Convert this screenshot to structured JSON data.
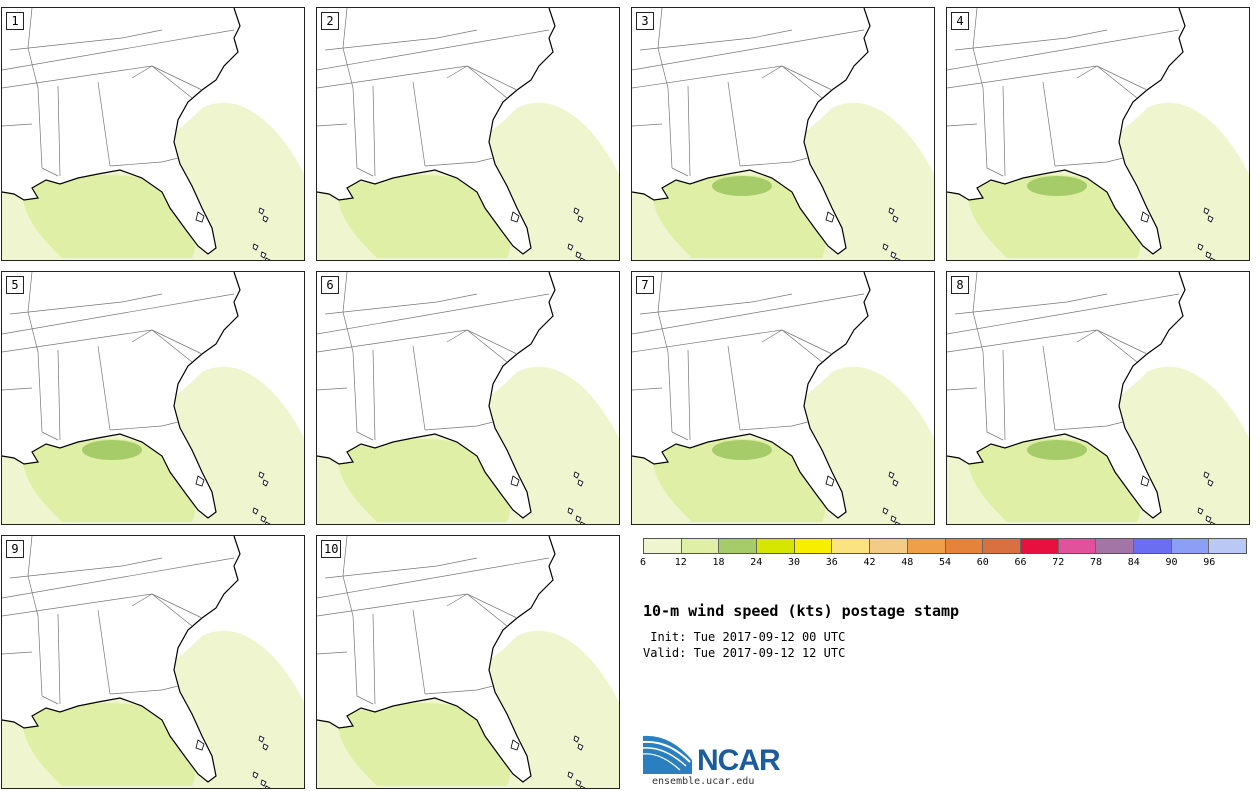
{
  "stamps": [
    {
      "label": "1",
      "intensity": 1
    },
    {
      "label": "2",
      "intensity": 1
    },
    {
      "label": "3",
      "intensity": 2
    },
    {
      "label": "4",
      "intensity": 2
    },
    {
      "label": "5",
      "intensity": 2
    },
    {
      "label": "6",
      "intensity": 1
    },
    {
      "label": "7",
      "intensity": 3
    },
    {
      "label": "8",
      "intensity": 2
    },
    {
      "label": "9",
      "intensity": 1
    },
    {
      "label": "10",
      "intensity": 1
    }
  ],
  "colorbar": {
    "labels": [
      "6",
      "12",
      "18",
      "24",
      "30",
      "36",
      "42",
      "48",
      "54",
      "60",
      "66",
      "72",
      "78",
      "84",
      "90",
      "96"
    ],
    "colors": [
      "#eef5cf",
      "#e0efa6",
      "#a6cc6a",
      "#d7e600",
      "#f7ee00",
      "#fbe381",
      "#f4ca87",
      "#ef9f4a",
      "#e5833b",
      "#d9703f",
      "#e8103e",
      "#e2519b",
      "#a275a6",
      "#6b6ef0",
      "#8c9ef5",
      "#b9c8f5"
    ]
  },
  "title": "10-m wind speed (kts) postage stamp",
  "init": " Init: Tue 2017-09-12 00 UTC",
  "valid": "Valid: Tue 2017-09-12 12 UTC",
  "logo": {
    "name": "NCAR",
    "url": "ensemble.ucar.edu"
  }
}
